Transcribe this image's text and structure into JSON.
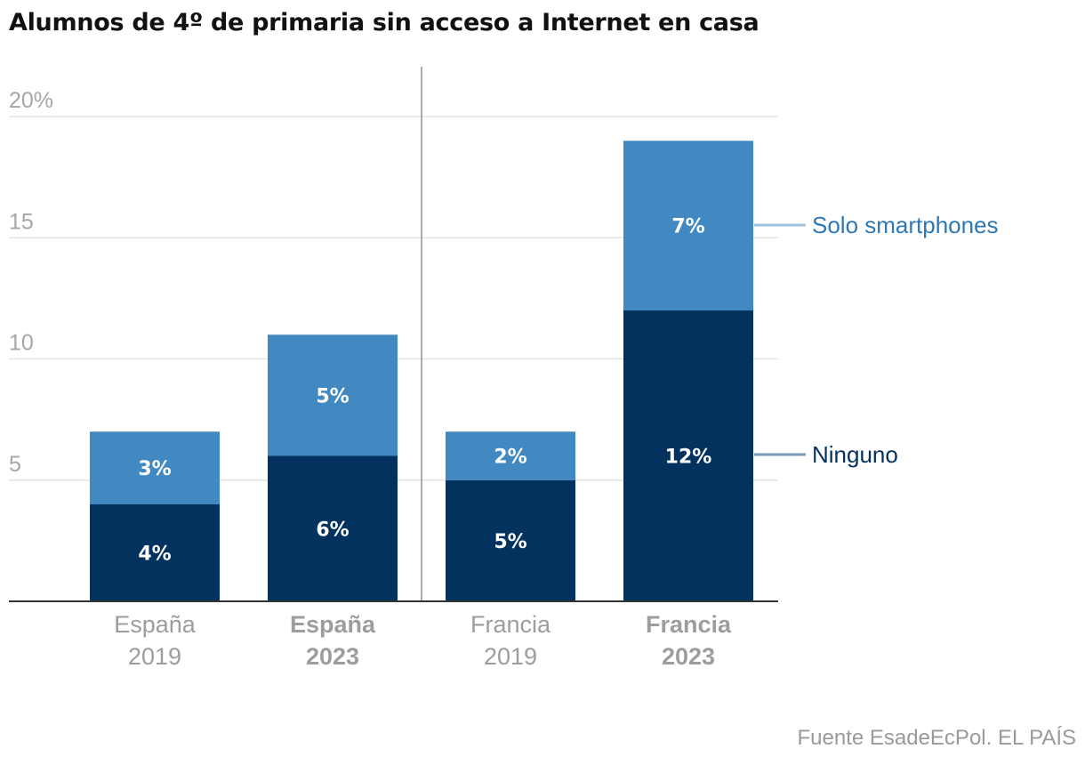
{
  "chart_data": {
    "type": "bar",
    "stacked": true,
    "title": "Alumnos de 4º de primaria sin acceso a Internet en casa",
    "categories": [
      {
        "line1": "España",
        "line2": "2019",
        "bold": false
      },
      {
        "line1": "España",
        "line2": "2023",
        "bold": true
      },
      {
        "line1": "Francia",
        "line2": "2019",
        "bold": false
      },
      {
        "line1": "Francia",
        "line2": "2023",
        "bold": true
      }
    ],
    "series": [
      {
        "name": "Ninguno",
        "values": [
          4,
          6,
          5,
          12
        ],
        "labels": [
          "4%",
          "6%",
          "5%",
          "12%"
        ],
        "color": "#03325e",
        "legend_color": "#7b9ab8"
      },
      {
        "name": "Solo smartphones",
        "values": [
          3,
          5,
          2,
          7
        ],
        "labels": [
          "3%",
          "5%",
          "2%",
          "7%"
        ],
        "color": "#4289c2",
        "legend_color": "#9fc3dd",
        "label_color": "#2f78b6"
      }
    ],
    "yticks": [
      "5",
      "10",
      "15",
      "20%"
    ],
    "ytick_values": [
      5,
      10,
      15,
      20
    ],
    "ylim": [
      0,
      20
    ],
    "xlabel": "",
    "ylabel": "",
    "grid": true,
    "legend": "right"
  },
  "source": "Fuente EsadeEcPol. EL PAÍS"
}
